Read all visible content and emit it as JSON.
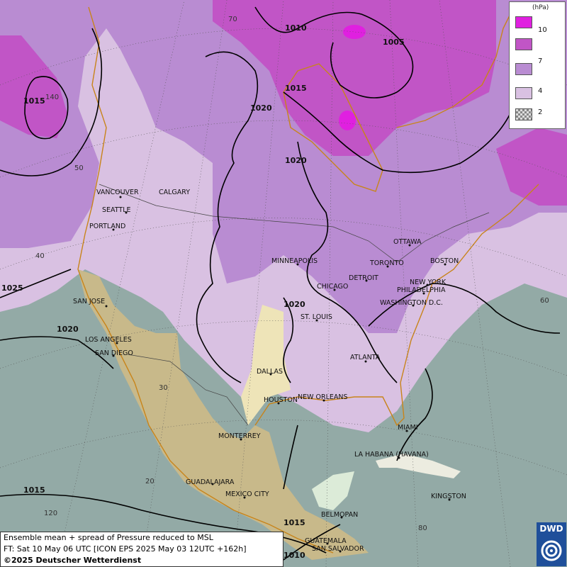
{
  "legend": {
    "unit": "(hPa)",
    "ticks": [
      "10",
      "7",
      "4",
      "2"
    ],
    "colors": [
      "#e020e0",
      "#c155c6",
      "#b98cd2",
      "#d9c1e2",
      "#9a9a9a"
    ]
  },
  "info": {
    "line1": "Ensemble mean + spread of Pressure reduced to MSL",
    "line2": "FT: Sat 10 May 06 UTC [ICON EPS 2025 May 03 12UTC +162h]",
    "copyright": "©2025 Deutscher Wetterdienst"
  },
  "logo": {
    "text": "DWD"
  },
  "isobar_labels": [
    {
      "text": "1010"
    },
    {
      "text": "1005"
    },
    {
      "text": "1015"
    },
    {
      "text": "1020"
    },
    {
      "text": "1020"
    },
    {
      "text": "1015"
    },
    {
      "text": "1025"
    },
    {
      "text": "1020"
    },
    {
      "text": "1020"
    },
    {
      "text": "1015"
    },
    {
      "text": "1015"
    },
    {
      "text": "1010"
    }
  ],
  "grid_labels": [
    "70",
    "140",
    "50",
    "40",
    "60",
    "30",
    "20",
    "120",
    "80"
  ],
  "cities": [
    "VANCOUVER",
    "CALGARY",
    "SEATTLE",
    "PORTLAND",
    "SAN JOSE",
    "LOS ANGELES",
    "SAN DIEGO",
    "MINNEAPOLIS",
    "CHICAGO",
    "DETROIT",
    "TORONTO",
    "OTTAWA",
    "BOSTON",
    "NEW YORK",
    "PHILADELPHIA",
    "WASHINGTON D.C.",
    "ST. LOUIS",
    "ATLANTA",
    "DALLAS",
    "HOUSTON",
    "NEW ORLEANS",
    "MIAMI",
    "MONTERREY",
    "LA HABANA (HAVANA)",
    "GUADALAJARA",
    "MEXICO CITY",
    "KINGSTON",
    "BELMOPAN",
    "GUATEMALA",
    "SAN SALVADOR"
  ]
}
